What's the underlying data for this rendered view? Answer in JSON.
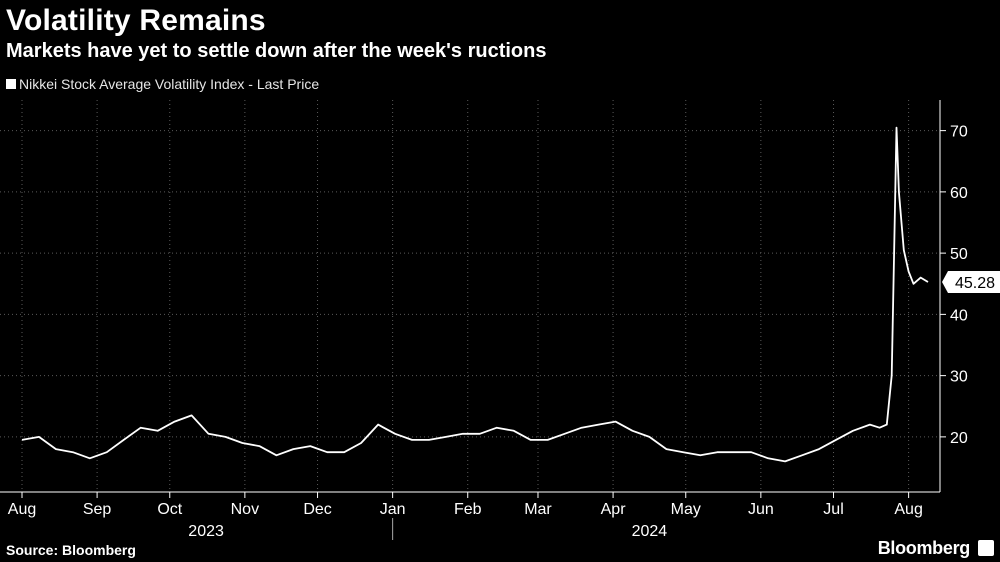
{
  "title": "Volatility Remains",
  "subtitle": "Markets have yet to settle down after the week's ructions",
  "source": "Source: Bloomberg",
  "brand": "Bloomberg",
  "colors": {
    "background": "#000000",
    "line": "#ffffff",
    "grid": "#5a5a5a"
  },
  "chart_data": {
    "type": "line",
    "title": "Volatility Remains",
    "subtitle": "Markets have yet to settle down after the week's ructions",
    "xlabel": "",
    "ylabel": "",
    "ylim": [
      11,
      75
    ],
    "yticks": [
      20,
      30,
      40,
      50,
      60,
      70
    ],
    "ytick_labels": [
      "20",
      "30",
      "40",
      "50",
      "60",
      "70"
    ],
    "x_axis_note": "weekly approximate dates, from 2023-08-01 to 2024-08-09",
    "xlim_days": [
      0,
      374
    ],
    "month_ticks": [
      {
        "label": "Aug",
        "day": 0
      },
      {
        "label": "Sep",
        "day": 31
      },
      {
        "label": "Oct",
        "day": 61
      },
      {
        "label": "Nov",
        "day": 92
      },
      {
        "label": "Dec",
        "day": 122
      },
      {
        "label": "Jan",
        "day": 153
      },
      {
        "label": "Feb",
        "day": 184
      },
      {
        "label": "Mar",
        "day": 213
      },
      {
        "label": "Apr",
        "day": 244
      },
      {
        "label": "May",
        "day": 274
      },
      {
        "label": "Jun",
        "day": 305
      },
      {
        "label": "Jul",
        "day": 335
      },
      {
        "label": "Aug",
        "day": 366
      }
    ],
    "year_labels": [
      {
        "label": "2023",
        "day": 76
      },
      {
        "label": "2024",
        "day": 259
      }
    ],
    "year_divider_day": 153,
    "legend": [
      "Nikkei Stock Average Volatility Index - Last Price"
    ],
    "last_value_label": "45.28",
    "series": [
      {
        "name": "Nikkei Stock Average Volatility Index - Last Price",
        "x": [
          0,
          7,
          14,
          21,
          28,
          35,
          42,
          49,
          56,
          63,
          70,
          77,
          84,
          91,
          98,
          105,
          112,
          119,
          126,
          133,
          140,
          147,
          154,
          161,
          168,
          175,
          182,
          189,
          196,
          203,
          210,
          217,
          224,
          231,
          238,
          245,
          252,
          259,
          266,
          273,
          280,
          287,
          294,
          301,
          308,
          315,
          322,
          329,
          336,
          343,
          350,
          354,
          357,
          359,
          360,
          361,
          362,
          364,
          366,
          368,
          371,
          374
        ],
        "values": [
          19.5,
          20.0,
          18.0,
          17.5,
          16.5,
          17.5,
          19.5,
          21.5,
          21.0,
          22.5,
          23.5,
          20.5,
          20.0,
          19.0,
          18.5,
          17.0,
          18.0,
          18.5,
          17.5,
          17.5,
          19.0,
          22.0,
          20.5,
          19.5,
          19.5,
          20.0,
          20.5,
          20.5,
          21.5,
          21.0,
          19.5,
          19.5,
          20.5,
          21.5,
          22.0,
          22.5,
          21.0,
          20.0,
          18.0,
          17.5,
          17.0,
          17.5,
          17.5,
          17.5,
          16.5,
          16.0,
          17.0,
          18.0,
          19.5,
          21.0,
          22.0,
          21.5,
          22.0,
          30.0,
          50.0,
          70.5,
          60.0,
          50.5,
          47.0,
          45.0,
          46.0,
          45.28
        ]
      }
    ]
  }
}
